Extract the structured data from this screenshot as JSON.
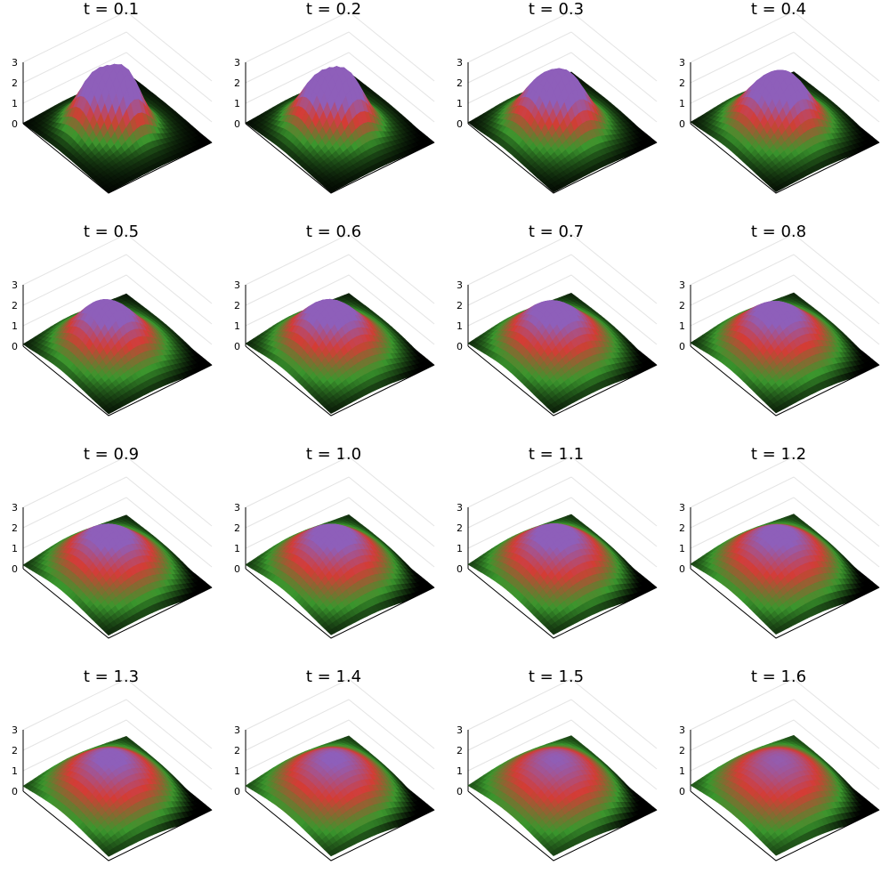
{
  "chart_data": {
    "type": "surface",
    "layout": {
      "rows": 4,
      "cols": 4
    },
    "zticks": [
      "0",
      "1",
      "2",
      "3"
    ],
    "zlim": [
      0,
      3
    ],
    "colors": {
      "low": "#000000",
      "mid": "#3a962d",
      "high": "#d43c35",
      "peak": "#8e5fba"
    },
    "panels": [
      {
        "title": "t = 0.1",
        "t": 0.1
      },
      {
        "title": "t = 0.2",
        "t": 0.2
      },
      {
        "title": "t = 0.3",
        "t": 0.3
      },
      {
        "title": "t = 0.4",
        "t": 0.4
      },
      {
        "title": "t = 0.5",
        "t": 0.5
      },
      {
        "title": "t = 0.6",
        "t": 0.6
      },
      {
        "title": "t = 0.7",
        "t": 0.7
      },
      {
        "title": "t = 0.8",
        "t": 0.8
      },
      {
        "title": "t = 0.9",
        "t": 0.9
      },
      {
        "title": "t = 1.0",
        "t": 1.0
      },
      {
        "title": "t = 1.1",
        "t": 1.1
      },
      {
        "title": "t = 1.2",
        "t": 1.2
      },
      {
        "title": "t = 1.3",
        "t": 1.3
      },
      {
        "title": "t = 1.4",
        "t": 1.4
      },
      {
        "title": "t = 1.5",
        "t": 1.5
      },
      {
        "title": "t = 1.6",
        "t": 1.6
      }
    ]
  }
}
